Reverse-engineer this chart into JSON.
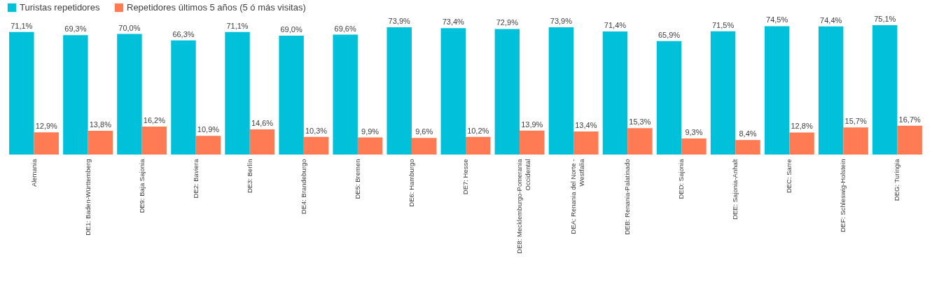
{
  "chart_data": {
    "type": "bar",
    "categories": [
      "Alemania",
      "DE1: Baden-Württemberg",
      "DE9: Baja Sajonia",
      "DE2: Baviera",
      "DE3: Berlín",
      "DE4: Brandeburgo",
      "DE5: Bremen",
      "DE6: Hamburgo",
      "DE7: Hesse",
      "DE8: Mecklemburgo-Pomerania Occidental",
      "DEA: Renania del Norte - Westfalia",
      "DEB: Renania-Palatinado",
      "DED: Sajonia",
      "DEE: Sajonia-Anhalt",
      "DEC: Sarre",
      "DEF: Schleswig-Holstein",
      "DEG: Turingia"
    ],
    "series": [
      {
        "name": "Turistas repetidores",
        "color": "#00c0da",
        "values": [
          71.1,
          69.3,
          70.0,
          66.3,
          71.1,
          69.0,
          69.6,
          73.9,
          73.4,
          72.9,
          73.9,
          71.4,
          65.9,
          71.5,
          74.5,
          74.4,
          75.1
        ],
        "value_labels": [
          "71,1%",
          "69,3%",
          "70,0%",
          "66,3%",
          "71,1%",
          "69,0%",
          "69,6%",
          "73,9%",
          "73,4%",
          "72,9%",
          "73,9%",
          "71,4%",
          "65,9%",
          "71,5%",
          "74,5%",
          "74,4%",
          "75,1%"
        ]
      },
      {
        "name": "Repetidores últimos 5 años (5 ó más visitas)",
        "color": "#ff7b54",
        "values": [
          12.9,
          13.8,
          16.2,
          10.9,
          14.6,
          10.3,
          9.9,
          9.6,
          10.2,
          13.9,
          13.4,
          15.3,
          9.3,
          8.4,
          12.8,
          15.7,
          16.7
        ],
        "value_labels": [
          "12,9%",
          "13,8%",
          "16,2%",
          "10,9%",
          "14,6%",
          "10,3%",
          "9,9%",
          "9,6%",
          "10,2%",
          "13,9%",
          "13,4%",
          "15,3%",
          "9,3%",
          "8,4%",
          "12,8%",
          "15,7%",
          "16,7%"
        ]
      }
    ],
    "legend": "top"
  }
}
